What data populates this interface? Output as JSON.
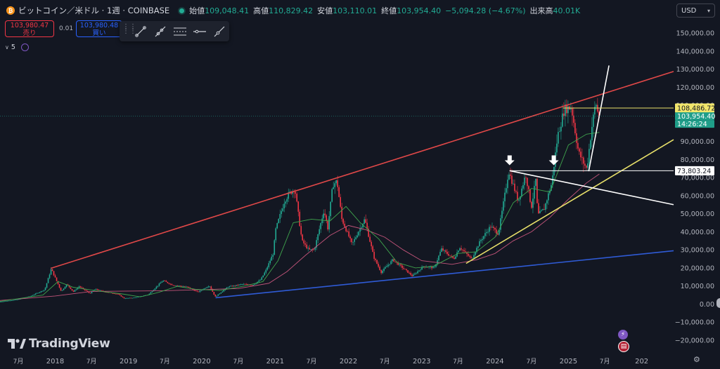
{
  "header": {
    "symbol_icon": "bitcoin-icon",
    "symbol_title": "ビットコイン／米ドル · 1週 · COINBASE",
    "market_status": "market-open-dot",
    "ohlc": [
      {
        "key": "始値",
        "value": "109,048.41"
      },
      {
        "key": "高値",
        "value": "110,829.42"
      },
      {
        "key": "安値",
        "value": "103,110.01"
      },
      {
        "key": "終値",
        "value": "103,954.40"
      },
      {
        "key": "",
        "value": "−5,094.28 (−4.67%)"
      },
      {
        "key": "出来高",
        "value": "40.01K"
      }
    ],
    "currency": "USD"
  },
  "trade": {
    "sell_price": "103,980.47",
    "sell_label": "売り",
    "spread": "0.01",
    "buy_price": "103,980.48",
    "buy_label": "買い"
  },
  "drawing_toolbar": {
    "tools": [
      "trend-line-icon",
      "ray-icon",
      "parallel-channel-icon",
      "horizontal-ray-icon",
      "extended-line-icon"
    ]
  },
  "indicators": {
    "count": "5"
  },
  "watermark": {
    "text": "TradingView",
    "logo": "tradingview-logo-icon"
  },
  "colors": {
    "background": "#131722",
    "up": "#22ab94",
    "down": "#f23645",
    "red_line": "#e04848",
    "blue_line": "#2f5bd6",
    "yellow_line": "#e8e06a",
    "ma_green": "#3fa34d",
    "ma_pink": "#c2547a"
  },
  "chart_data": {
    "type": "candlestick",
    "title": "ビットコイン／米ドル · 1週 · COINBASE",
    "y_axis": {
      "ticks": [
        "150,000.00",
        "140,000.00",
        "130,000.00",
        "120,000.00",
        "110,000.00",
        "100,000.00",
        "90,000.00",
        "80,000.00",
        "70,000.00",
        "60,000.00",
        "50,000.00",
        "40,000.00",
        "30,000.00",
        "20,000.00",
        "10,000.00",
        "0.00",
        "−10,000.00",
        "−20,000.00"
      ],
      "range": [
        -25000,
        155000
      ]
    },
    "x_axis": {
      "ticks": [
        "7月",
        "2018",
        "7月",
        "2019",
        "7月",
        "2020",
        "7月",
        "2021",
        "7月",
        "2022",
        "7月",
        "2023",
        "7月",
        "2024",
        "7月",
        "2025",
        "7月",
        "202"
      ],
      "range": [
        "2017-04-01",
        "2026-09-01"
      ]
    },
    "price_labels": [
      {
        "value": "108,486.72",
        "kind": "horizontal-line-high"
      },
      {
        "value": "103,954.40",
        "kind": "last-price"
      },
      {
        "value": "14:26:24",
        "kind": "bar-countdown"
      },
      {
        "value": "73,803.24",
        "kind": "horizontal-line"
      }
    ],
    "price_path": [
      [
        "2017-04-01",
        1200
      ],
      [
        "2017-07-01",
        2500
      ],
      [
        "2017-09-01",
        4200
      ],
      [
        "2017-11-15",
        8000
      ],
      [
        "2017-12-17",
        19500
      ],
      [
        "2018-02-05",
        7000
      ],
      [
        "2018-03-05",
        11000
      ],
      [
        "2018-04-06",
        6800
      ],
      [
        "2018-05-05",
        9800
      ],
      [
        "2018-06-28",
        5900
      ],
      [
        "2018-07-25",
        8300
      ],
      [
        "2018-09-01",
        7000
      ],
      [
        "2018-11-15",
        5500
      ],
      [
        "2018-12-15",
        3200
      ],
      [
        "2019-02-01",
        3500
      ],
      [
        "2019-04-15",
        5200
      ],
      [
        "2019-06-26",
        13000
      ],
      [
        "2019-08-15",
        10500
      ],
      [
        "2019-10-26",
        9500
      ],
      [
        "2019-12-18",
        6600
      ],
      [
        "2020-02-13",
        10300
      ],
      [
        "2020-03-13",
        4000
      ],
      [
        "2020-05-15",
        9500
      ],
      [
        "2020-07-26",
        11000
      ],
      [
        "2020-09-15",
        10500
      ],
      [
        "2020-10-26",
        13500
      ],
      [
        "2020-11-20",
        18500
      ],
      [
        "2020-12-27",
        28000
      ],
      [
        "2021-01-08",
        41000
      ],
      [
        "2021-02-21",
        57000
      ],
      [
        "2021-03-15",
        61000
      ],
      [
        "2021-04-14",
        64000
      ],
      [
        "2021-05-19",
        35000
      ],
      [
        "2021-06-22",
        30000
      ],
      [
        "2021-07-20",
        30000
      ],
      [
        "2021-09-06",
        52000
      ],
      [
        "2021-09-25",
        42000
      ],
      [
        "2021-10-20",
        66000
      ],
      [
        "2021-11-10",
        68000
      ],
      [
        "2021-12-04",
        47000
      ],
      [
        "2022-01-24",
        33000
      ],
      [
        "2022-03-28",
        47000
      ],
      [
        "2022-05-12",
        26000
      ],
      [
        "2022-06-18",
        17600
      ],
      [
        "2022-08-15",
        24500
      ],
      [
        "2022-10-15",
        19000
      ],
      [
        "2022-11-21",
        15500
      ],
      [
        "2023-01-15",
        21000
      ],
      [
        "2023-03-10",
        20000
      ],
      [
        "2023-04-14",
        30500
      ],
      [
        "2023-06-15",
        25000
      ],
      [
        "2023-07-14",
        31500
      ],
      [
        "2023-09-11",
        25000
      ],
      [
        "2023-10-25",
        35000
      ],
      [
        "2023-12-15",
        43000
      ],
      [
        "2024-01-23",
        39000
      ],
      [
        "2024-02-28",
        63000
      ],
      [
        "2024-03-14",
        73800
      ],
      [
        "2024-05-01",
        57000
      ],
      [
        "2024-06-07",
        71900
      ],
      [
        "2024-07-05",
        53500
      ],
      [
        "2024-07-29",
        70000
      ],
      [
        "2024-08-05",
        49000
      ],
      [
        "2024-09-06",
        52500
      ],
      [
        "2024-10-15",
        67000
      ],
      [
        "2024-11-13",
        93000
      ],
      [
        "2024-12-17",
        108000
      ],
      [
        "2025-01-20",
        109000
      ],
      [
        "2025-02-25",
        84000
      ],
      [
        "2025-04-07",
        74500
      ],
      [
        "2025-05-01",
        97000
      ],
      [
        "2025-05-22",
        111900
      ],
      [
        "2025-06-04",
        103950
      ]
    ],
    "moving_average_fast": [
      [
        "2017-04-01",
        1500
      ],
      [
        "2017-11-01",
        5000
      ],
      [
        "2018-01-15",
        12500
      ],
      [
        "2018-04-01",
        9300
      ],
      [
        "2018-08-01",
        7300
      ],
      [
        "2018-12-01",
        5600
      ],
      [
        "2019-03-01",
        4000
      ],
      [
        "2019-06-01",
        6500
      ],
      [
        "2019-09-01",
        9800
      ],
      [
        "2019-12-01",
        8200
      ],
      [
        "2020-04-01",
        7500
      ],
      [
        "2020-08-01",
        10000
      ],
      [
        "2020-11-01",
        12500
      ],
      [
        "2021-01-15",
        24000
      ],
      [
        "2021-04-01",
        45000
      ],
      [
        "2021-07-01",
        47000
      ],
      [
        "2021-10-01",
        46000
      ],
      [
        "2021-12-20",
        54000
      ],
      [
        "2022-03-01",
        45000
      ],
      [
        "2022-06-01",
        36000
      ],
      [
        "2022-09-01",
        23000
      ],
      [
        "2022-12-01",
        20000
      ],
      [
        "2023-03-01",
        21000
      ],
      [
        "2023-07-01",
        28000
      ],
      [
        "2023-10-01",
        29000
      ],
      [
        "2024-01-01",
        37000
      ],
      [
        "2024-04-01",
        56000
      ],
      [
        "2024-07-01",
        64000
      ],
      [
        "2024-10-01",
        62000
      ],
      [
        "2025-01-01",
        88000
      ],
      [
        "2025-04-01",
        94000
      ],
      [
        "2025-06-04",
        95000
      ]
    ],
    "moving_average_slow": [
      [
        "2017-04-01",
        2000
      ],
      [
        "2018-01-01",
        4500
      ],
      [
        "2018-07-01",
        7000
      ],
      [
        "2019-01-01",
        7200
      ],
      [
        "2019-07-01",
        7400
      ],
      [
        "2020-01-01",
        8000
      ],
      [
        "2020-07-01",
        8600
      ],
      [
        "2020-12-01",
        11500
      ],
      [
        "2021-03-01",
        18000
      ],
      [
        "2021-06-01",
        27000
      ],
      [
        "2021-10-01",
        38000
      ],
      [
        "2022-01-01",
        43500
      ],
      [
        "2022-04-01",
        41000
      ],
      [
        "2022-07-01",
        37000
      ],
      [
        "2022-10-01",
        30000
      ],
      [
        "2023-01-01",
        24000
      ],
      [
        "2023-06-01",
        22000
      ],
      [
        "2023-10-01",
        24500
      ],
      [
        "2024-01-01",
        28000
      ],
      [
        "2024-04-01",
        35000
      ],
      [
        "2024-07-01",
        40000
      ],
      [
        "2024-10-01",
        48000
      ],
      [
        "2025-01-01",
        58000
      ],
      [
        "2025-04-01",
        67000
      ],
      [
        "2025-06-04",
        72000
      ]
    ],
    "drawn_lines": [
      {
        "name": "upper-resistance-trendline",
        "color": "red",
        "from": [
          "2017-12-10",
          19800
        ],
        "to": [
          "2026-06-30",
          128700
        ]
      },
      {
        "name": "lower-support-trendline",
        "color": "blue",
        "from": [
          "2020-03-10",
          3500
        ],
        "to": [
          "2026-06-30",
          29500
        ]
      },
      {
        "name": "rising-trendline",
        "color": "yellow",
        "from": [
          "2023-08-10",
          22500
        ],
        "to": [
          "2026-06-30",
          91000
        ]
      },
      {
        "name": "descending-trendline",
        "color": "white",
        "from": [
          "2024-03-14",
          73800
        ],
        "to": [
          "2026-06-30",
          55000
        ]
      },
      {
        "name": "steep-trendline",
        "color": "white",
        "from": [
          "2025-04-12",
          73500
        ],
        "to": [
          "2025-07-22",
          132000
        ]
      },
      {
        "name": "horizontal-line-high",
        "color": "yellow",
        "from": [
          "2024-12-05",
          108486
        ],
        "to": [
          "2026-06-30",
          108486
        ]
      },
      {
        "name": "horizontal-line-73803",
        "color": "white",
        "from": [
          "2024-03-14",
          73803
        ],
        "to": [
          "2026-06-30",
          73803
        ]
      }
    ],
    "arrows": [
      {
        "name": "down-arrow-march-2024",
        "at": [
          "2024-03-14",
          78000
        ]
      },
      {
        "name": "down-arrow-october-2024",
        "at": [
          "2024-10-20",
          78000
        ]
      }
    ]
  }
}
